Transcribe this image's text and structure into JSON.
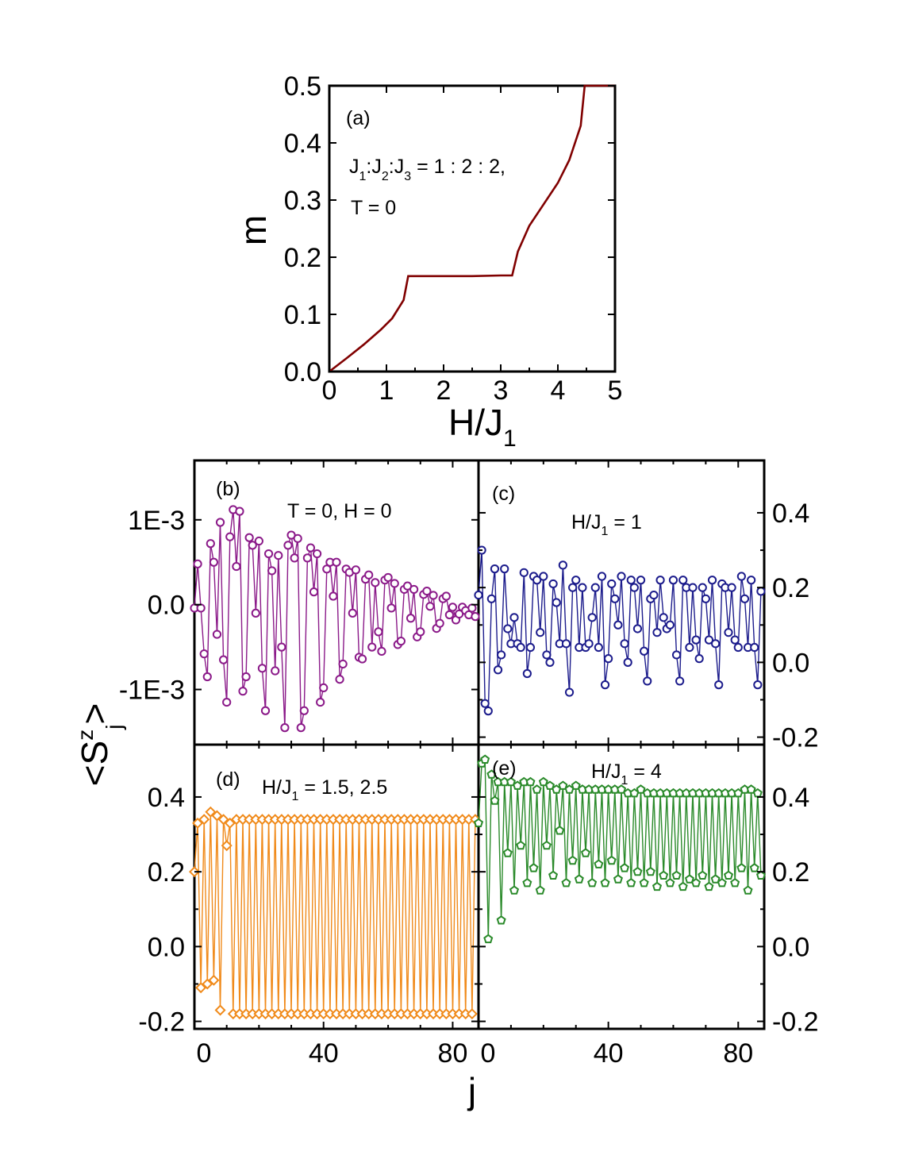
{
  "chart_data": [
    {
      "id": "a",
      "type": "line",
      "panel_label": "(a)",
      "annotation_lines": [
        "J_1:J_2:J_3 = 1 : 2 : 2,",
        "T = 0"
      ],
      "xlabel": "H/J_1",
      "ylabel": "m",
      "xlim": [
        0,
        5
      ],
      "ylim": [
        0,
        0.5
      ],
      "xticks": [
        "0",
        "1",
        "2",
        "3",
        "4",
        "5"
      ],
      "yticks": [
        "0.0",
        "0.1",
        "0.2",
        "0.3",
        "0.4",
        "0.5"
      ],
      "color": "#800000",
      "x": [
        0,
        0.3,
        0.6,
        0.9,
        1.1,
        1.3,
        1.38,
        1.5,
        2.0,
        2.5,
        3.0,
        3.2,
        3.3,
        3.5,
        3.7,
        4.0,
        4.2,
        4.4,
        4.47,
        5.0
      ],
      "y": [
        0,
        0.023,
        0.047,
        0.073,
        0.093,
        0.125,
        0.167,
        0.167,
        0.167,
        0.167,
        0.168,
        0.168,
        0.21,
        0.255,
        0.285,
        0.33,
        0.37,
        0.43,
        0.5,
        0.5
      ]
    },
    {
      "id": "b",
      "type": "line",
      "panel_label": "(b)",
      "annotation": "T = 0, H = 0",
      "ylim": [
        -0.00165,
        0.0017
      ],
      "yticks": [
        "1E-3",
        "0.0",
        "-1E-3"
      ],
      "xlim": [
        0,
        88
      ],
      "color": "#8B1A89",
      "marker": "circle",
      "x": [
        0,
        1,
        2,
        3,
        4,
        5,
        6,
        7,
        8,
        9,
        10,
        11,
        12,
        13,
        14,
        15,
        16,
        17,
        18,
        19,
        20,
        21,
        22,
        23,
        24,
        25,
        26,
        27,
        28,
        29,
        30,
        31,
        32,
        33,
        34,
        35,
        36,
        37,
        38,
        39,
        40,
        41,
        42,
        43,
        44,
        45,
        46,
        47,
        48,
        49,
        50,
        51,
        52,
        53,
        54,
        55,
        56,
        57,
        58,
        59,
        60,
        61,
        62,
        63,
        64,
        65,
        66,
        67,
        68,
        69,
        70,
        71,
        72,
        73,
        74,
        75,
        76,
        77,
        78,
        79,
        80,
        81,
        82,
        83,
        84,
        85,
        86,
        87
      ],
      "y": [
        -4e-05,
        0.00048,
        -4e-05,
        -0.00058,
        -0.00085,
        0.00072,
        0.0005,
        -0.00035,
        0.00097,
        -0.00065,
        -0.00115,
        0.0008,
        0.00112,
        0.00045,
        0.0011,
        -0.00102,
        -0.00085,
        0.00079,
        0.0007,
        -0.0001,
        0.00075,
        -0.00075,
        -0.00125,
        0.0006,
        0.0004,
        -0.00078,
        0.00058,
        -0.0005,
        -0.00145,
        0.0007,
        0.00082,
        0.00055,
        0.00078,
        -0.00145,
        -0.00125,
        0.00055,
        0.00067,
        0.00015,
        0.0006,
        -0.00115,
        -0.00098,
        0.00042,
        0.0005,
        0.0001,
        0.0005,
        -0.00088,
        -0.0007,
        0.00042,
        0.00038,
        -0.0001,
        0.00041,
        -0.00062,
        -0.00064,
        0.0003,
        0.00035,
        -0.0005,
        0.00026,
        -0.00032,
        -0.00055,
        0.00029,
        0.00032,
        -4e-05,
        0.00025,
        -0.00047,
        -0.00043,
        0.00018,
        0.00022,
        -0.00016,
        0.00018,
        -0.00038,
        -0.00032,
        0.00012,
        0.00016,
        -2e-05,
        0.00011,
        -0.00028,
        -0.00022,
        7e-05,
        0.0001,
        -0.00012,
        -3e-05,
        -0.00018,
        -0.00011,
        -3e-05,
        -7e-05,
        -0.00012,
        -4e-05,
        -0.00014
      ]
    },
    {
      "id": "c",
      "type": "line",
      "panel_label": "(c)",
      "annotation": "H/J_1 = 1",
      "ylim": [
        -0.22,
        0.54
      ],
      "yticks": [
        "0.4",
        "0.2",
        "0.0",
        "-0.2"
      ],
      "xlim": [
        0,
        88
      ],
      "color": "#1C1C8C",
      "marker": "circle",
      "x": [
        0,
        1,
        2,
        3,
        4,
        5,
        6,
        7,
        8,
        9,
        10,
        11,
        12,
        13,
        14,
        15,
        16,
        17,
        18,
        19,
        20,
        21,
        22,
        23,
        24,
        25,
        26,
        27,
        28,
        29,
        30,
        31,
        32,
        33,
        34,
        35,
        36,
        37,
        38,
        39,
        40,
        41,
        42,
        43,
        44,
        45,
        46,
        47,
        48,
        49,
        50,
        51,
        52,
        53,
        54,
        55,
        56,
        57,
        58,
        59,
        60,
        61,
        62,
        63,
        64,
        65,
        66,
        67,
        68,
        69,
        70,
        71,
        72,
        73,
        74,
        75,
        76,
        77,
        78,
        79,
        80,
        81,
        82,
        83,
        84,
        85,
        86,
        87
      ],
      "y": [
        0.18,
        0.3,
        -0.11,
        -0.13,
        0.17,
        0.25,
        -0.02,
        0.02,
        0.25,
        0.09,
        0.05,
        0.12,
        0.05,
        0.04,
        0.24,
        -0.03,
        0.04,
        0.23,
        0.22,
        0.08,
        0.23,
        0.02,
        0.0,
        0.21,
        0.16,
        0.05,
        0.26,
        0.05,
        -0.08,
        0.2,
        0.22,
        0.04,
        0.2,
        0.04,
        0.05,
        0.12,
        0.2,
        0.04,
        0.23,
        -0.06,
        0.01,
        0.21,
        0.17,
        0.1,
        0.23,
        0.05,
        0.0,
        0.22,
        0.2,
        0.09,
        0.22,
        0.03,
        -0.05,
        0.17,
        0.18,
        0.08,
        0.22,
        0.12,
        0.09,
        0.1,
        0.22,
        0.02,
        -0.05,
        0.22,
        0.2,
        0.04,
        0.2,
        0.06,
        0.01,
        0.2,
        0.17,
        0.06,
        0.22,
        0.05,
        -0.06,
        0.21,
        0.2,
        0.08,
        0.2,
        0.06,
        0.04,
        0.23,
        0.17,
        0.04,
        0.22,
        0.04,
        -0.06,
        0.19
      ]
    },
    {
      "id": "d",
      "type": "line",
      "panel_label": "(d)",
      "annotation": "H/J_1 = 1.5, 2.5",
      "ylim": [
        -0.22,
        0.54
      ],
      "yticks": [
        "0.4",
        "0.2",
        "0.0",
        "-0.2"
      ],
      "xlim": [
        0,
        88
      ],
      "xticks": [
        "0",
        "40",
        "80"
      ],
      "color": "#F08A1A",
      "marker": "diamond",
      "x": [
        0,
        1,
        2,
        3,
        4,
        5,
        6,
        7,
        8,
        9,
        10,
        11,
        12,
        13,
        14,
        15,
        16,
        17,
        18,
        19,
        20,
        21,
        22,
        23,
        24,
        25,
        26,
        27,
        28,
        29,
        30,
        31,
        32,
        33,
        34,
        35,
        36,
        37,
        38,
        39,
        40,
        41,
        42,
        43,
        44,
        45,
        46,
        47,
        48,
        49,
        50,
        51,
        52,
        53,
        54,
        55,
        56,
        57,
        58,
        59,
        60,
        61,
        62,
        63,
        64,
        65,
        66,
        67,
        68,
        69,
        70,
        71,
        72,
        73,
        74,
        75,
        76,
        77,
        78,
        79,
        80,
        81,
        82,
        83,
        84,
        85,
        86,
        87
      ],
      "y": [
        0.2,
        0.33,
        -0.11,
        0.34,
        -0.1,
        0.36,
        -0.09,
        0.35,
        -0.17,
        0.34,
        0.27,
        0.33,
        -0.18,
        0.34,
        -0.18,
        0.34,
        -0.18,
        0.34,
        -0.18,
        0.34,
        -0.18,
        0.34,
        -0.18,
        0.34,
        -0.18,
        0.34,
        -0.18,
        0.34,
        -0.18,
        0.34,
        -0.18,
        0.34,
        -0.18,
        0.34,
        -0.18,
        0.34,
        -0.18,
        0.34,
        -0.18,
        0.34,
        -0.18,
        0.34,
        -0.18,
        0.34,
        -0.18,
        0.34,
        -0.18,
        0.34,
        -0.18,
        0.34,
        -0.18,
        0.34,
        -0.18,
        0.34,
        -0.18,
        0.34,
        -0.18,
        0.34,
        -0.18,
        0.34,
        -0.18,
        0.34,
        -0.18,
        0.34,
        -0.18,
        0.34,
        -0.18,
        0.34,
        -0.18,
        0.34,
        -0.18,
        0.34,
        -0.18,
        0.34,
        -0.18,
        0.34,
        -0.18,
        0.34,
        -0.18,
        0.34,
        -0.18,
        0.34,
        -0.18,
        0.34,
        -0.18,
        0.34,
        -0.18,
        0.34
      ]
    },
    {
      "id": "e",
      "type": "line",
      "panel_label": "(e)",
      "annotation": "H/J_1 = 4",
      "ylim": [
        -0.22,
        0.54
      ],
      "yticks": [
        "0.4",
        "0.2",
        "0.0",
        "-0.2"
      ],
      "xlim": [
        0,
        88
      ],
      "xticks": [
        "0",
        "40",
        "80"
      ],
      "color": "#2A8A2A",
      "marker": "pentagon",
      "x": [
        0,
        1,
        2,
        3,
        4,
        5,
        6,
        7,
        8,
        9,
        10,
        11,
        12,
        13,
        14,
        15,
        16,
        17,
        18,
        19,
        20,
        21,
        22,
        23,
        24,
        25,
        26,
        27,
        28,
        29,
        30,
        31,
        32,
        33,
        34,
        35,
        36,
        37,
        38,
        39,
        40,
        41,
        42,
        43,
        44,
        45,
        46,
        47,
        48,
        49,
        50,
        51,
        52,
        53,
        54,
        55,
        56,
        57,
        58,
        59,
        60,
        61,
        62,
        63,
        64,
        65,
        66,
        67,
        68,
        69,
        70,
        71,
        72,
        73,
        74,
        75,
        76,
        77,
        78,
        79,
        80,
        81,
        82,
        83,
        84,
        85,
        86,
        87
      ],
      "y": [
        0.33,
        0.49,
        0.5,
        0.02,
        0.46,
        0.39,
        0.44,
        0.07,
        0.44,
        0.25,
        0.44,
        0.15,
        0.43,
        0.27,
        0.44,
        0.17,
        0.44,
        0.21,
        0.42,
        0.15,
        0.44,
        0.27,
        0.43,
        0.19,
        0.42,
        0.31,
        0.43,
        0.17,
        0.42,
        0.23,
        0.43,
        0.18,
        0.42,
        0.25,
        0.42,
        0.17,
        0.42,
        0.22,
        0.42,
        0.17,
        0.42,
        0.23,
        0.42,
        0.18,
        0.42,
        0.21,
        0.41,
        0.17,
        0.41,
        0.2,
        0.42,
        0.17,
        0.41,
        0.2,
        0.41,
        0.16,
        0.41,
        0.19,
        0.41,
        0.17,
        0.41,
        0.19,
        0.41,
        0.16,
        0.41,
        0.18,
        0.41,
        0.17,
        0.41,
        0.19,
        0.41,
        0.16,
        0.41,
        0.18,
        0.41,
        0.17,
        0.41,
        0.19,
        0.41,
        0.17,
        0.41,
        0.21,
        0.42,
        0.15,
        0.42,
        0.21,
        0.41,
        0.19
      ]
    }
  ],
  "shared": {
    "lower_xlabel": "j",
    "lower_ylabel": "<S^z_j>"
  }
}
